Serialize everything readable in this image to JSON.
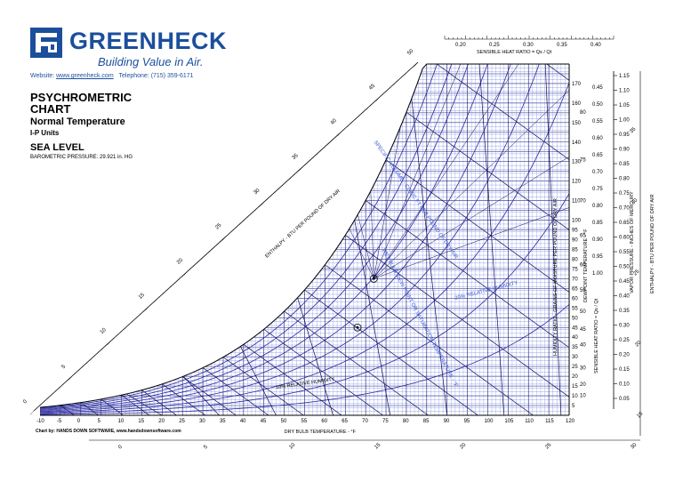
{
  "header": {
    "brand_name": "GREENHECK",
    "tagline": "Building Value in Air.",
    "website_label": "Website:",
    "website_link": "www.greenheck.com",
    "telephone": "Telephone: (715) 359-6171"
  },
  "info": {
    "title": "PSYCHROMETRIC CHART",
    "subtitle": "Normal Temperature",
    "units": "I-P Units",
    "level": "SEA LEVEL",
    "pressure": "BAROMETRIC PRESSURE: 29.921 in. HG"
  },
  "footer": {
    "credit": "Chart by: HANDS DOWN SOFTWARE, www.handsdownsoftware.com"
  },
  "colors": {
    "brand": "#1b4f9c",
    "grid_dark": "#1a1a7a",
    "grid_light": "#6f7fe0",
    "rh_curve": "#2a2aa0"
  },
  "chart_data": {
    "type": "line",
    "title": "PSYCHROMETRIC CHART",
    "xlabel": "DRY BULB TEMPERATURE - °F",
    "ylabel": "HUMIDITY RATIO - GRAINS OF MOISTURE PER POUND OF DRY AIR",
    "xlim": [
      -10,
      120
    ],
    "ylim": [
      0,
      180
    ],
    "x_ticks": [
      "-10",
      "-5",
      "0",
      "5",
      "10",
      "15",
      "20",
      "25",
      "30",
      "35",
      "40",
      "45",
      "50",
      "55",
      "60",
      "65",
      "70",
      "75",
      "80",
      "85",
      "90",
      "95",
      "100",
      "105",
      "110",
      "115",
      "120"
    ],
    "y_ticks": [
      "5",
      "10",
      "15",
      "20",
      "25",
      "30",
      "35",
      "40",
      "45",
      "50",
      "55",
      "60",
      "65",
      "70",
      "75",
      "80",
      "85",
      "90",
      "95",
      "100",
      "110",
      "120",
      "130",
      "140",
      "150",
      "160",
      "170"
    ],
    "dewpoint_label": "DEWPOINT TEMPERATURE - °F",
    "dewpoint_ticks": [
      "10",
      "20",
      "30",
      "40",
      "45",
      "50",
      "55",
      "60",
      "65",
      "70",
      "75",
      "80"
    ],
    "vapor_pressure_label": "VAPOR PRESSURE - INCHES OF MERCURY",
    "vapor_pressure_ticks": [
      "1.15",
      "1.10",
      "1.05",
      "1.00",
      "0.95",
      "0.90",
      "0.85",
      "0.80",
      "0.75",
      "0.70",
      "0.65",
      "0.60",
      "0.55",
      "0.50",
      "0.45",
      "0.40",
      "0.35",
      "0.30",
      "0.25",
      "0.20",
      "0.15",
      "0.10",
      "0.05"
    ],
    "shr_top_label": "SENSIBLE HEAT RATIO = Qs / Qt",
    "shr_top_ticks": [
      "0.20",
      "0.25",
      "0.30",
      "0.35",
      "0.40"
    ],
    "shr_right_label": "SENSIBLE HEAT RATIO = Qs / Qt",
    "shr_right_ticks": [
      "0.45",
      "0.50",
      "0.55",
      "0.60",
      "0.65",
      "0.70",
      "0.75",
      "0.80",
      "0.85",
      "0.90",
      "0.95",
      "1.00"
    ],
    "enthalpy_label": "ENTHALPY - BTU PER POUND OF DRY AIR",
    "enthalpy_ticks": [
      "0",
      "5",
      "10",
      "15",
      "20",
      "25",
      "30",
      "35",
      "40",
      "45",
      "50"
    ],
    "enthalpy_right_ticks": [
      "15",
      "20",
      "25",
      "30",
      "35"
    ],
    "bottom_scale_ticks": [
      "0",
      "5",
      "10",
      "15",
      "20",
      "25",
      "30"
    ],
    "rh_levels": [
      10,
      20,
      30,
      40,
      50,
      60,
      70,
      80,
      90,
      100
    ],
    "rh_labels": [
      "10% RELATIVE HUMIDITY",
      "20% RELATIVE HUMIDITY"
    ],
    "volume_label": "SPECIFIC VOLUME - CUBIC FT PER POUND OF DRY AIR",
    "wetbulb_label": "WET BULB, DEW POINT OR SATURATION TEMPERATURE - °F",
    "markers": [
      {
        "name": "comfort-point-upper",
        "x": 72,
        "y": 70
      },
      {
        "name": "comfort-point-lower",
        "x": 68,
        "y": 45
      }
    ]
  }
}
